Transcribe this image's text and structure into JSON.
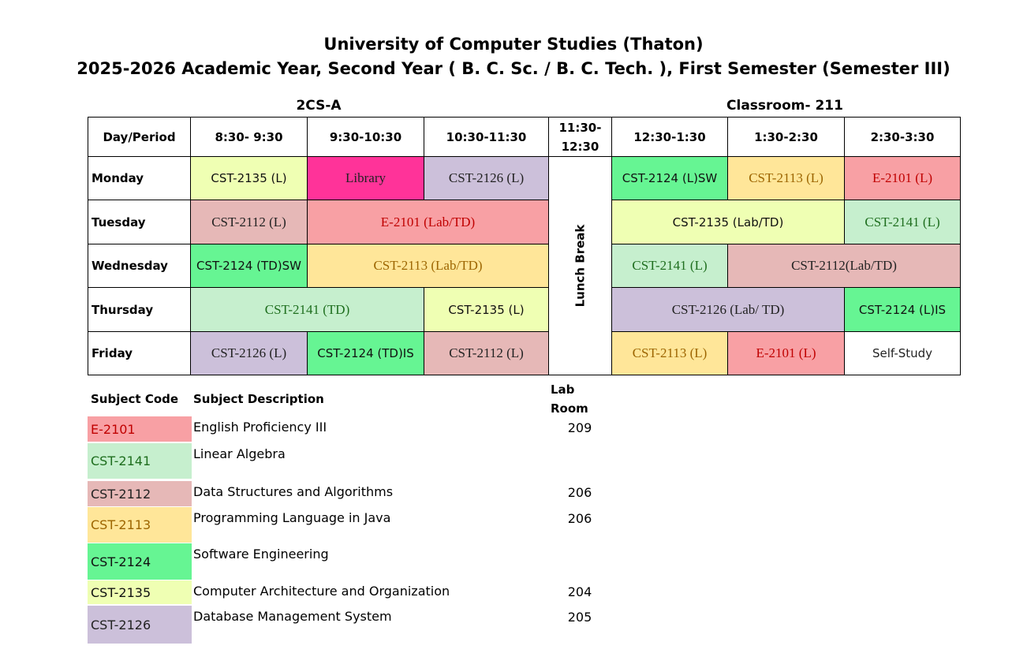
{
  "header": {
    "title": "University of Computer Studies (Thaton)",
    "subtitle": "2025-2026 Academic Year, Second Year ( B. C. Sc. / B. C. Tech. ), First Semester (Semester III)",
    "class": "2CS-A",
    "room": "Classroom- 211"
  },
  "table": {
    "headers": [
      "Day/Period",
      "8:30- 9:30",
      "9:30-10:30",
      "10:30-11:30",
      "11:30-\n12:30",
      "12:30-1:30",
      "1:30-2:30",
      "2:30-3:30"
    ],
    "break": "Lunch Break",
    "rows": [
      {
        "day": "Monday",
        "cells": [
          {
            "text": "CST-2135 (L)",
            "span": 1
          },
          {
            "text": "Library",
            "span": 1,
            "color": "#ff3399"
          },
          {
            "text": "CST-2126 (L)",
            "span": 1
          },
          {
            "text": "CST-2124 (L)SW",
            "span": 1
          },
          {
            "text": "CST-2113 (L)",
            "span": 1
          },
          {
            "text": "E-2101 (L)",
            "span": 1
          }
        ]
      },
      {
        "day": "Tuesday",
        "cells": [
          {
            "text": "CST-2112 (L)",
            "span": 1
          },
          {
            "text": "E-2101 (Lab/TD)",
            "span": 2
          },
          {
            "text": "CST-2135 (Lab/TD)",
            "span": 2
          },
          {
            "text": "CST-2141 (L)",
            "span": 1
          }
        ]
      },
      {
        "day": "Wednesday",
        "cells": [
          {
            "text": "CST-2124 (TD)SW",
            "span": 1
          },
          {
            "text": "CST-2113 (Lab/TD)",
            "span": 2
          },
          {
            "text": "CST-2141 (L)",
            "span": 1
          },
          {
            "text": "CST-2112(Lab/TD)",
            "span": 2
          }
        ]
      },
      {
        "day": "Thursday",
        "cells": [
          {
            "text": "CST-2141 (TD)",
            "span": 2
          },
          {
            "text": "CST-2135 (L)",
            "span": 1
          },
          {
            "text": "CST-2126 (Lab/ TD)",
            "span": 2
          },
          {
            "text": "CST-2124 (L)IS",
            "span": 1
          }
        ]
      },
      {
        "day": "Friday",
        "cells": [
          {
            "text": "CST-2126 (L)",
            "span": 1
          },
          {
            "text": "CST-2124 (TD)IS",
            "span": 1
          },
          {
            "text": "CST-2112 (L)",
            "span": 1
          },
          {
            "text": "CST-2113 (L)",
            "span": 1
          },
          {
            "text": "E-2101 (L)",
            "span": 1
          },
          {
            "text": "Self-Study",
            "span": 1,
            "color": "#ffffff"
          }
        ]
      }
    ]
  },
  "legend": {
    "headers": [
      "Subject Code",
      "Subject Description",
      "Lab\nRoom"
    ],
    "subjects": [
      {
        "code": "E-2101",
        "description": "English Proficiency III",
        "room": "209",
        "color": "#f8a0a4",
        "text_color": "#c00000",
        "serif": true
      },
      {
        "code": "CST-2141",
        "description": "Linear Algebra",
        "color": "#c6efce",
        "text_color": "#1e6e1e",
        "serif": true
      },
      {
        "code": "CST-2112",
        "description": "Data Structures and Algorithms",
        "room": "206",
        "color": "#e6b8b7",
        "text_color": "#222222",
        "serif": true
      },
      {
        "code": "CST-2113",
        "description": "Programming Language in Java",
        "room": "206",
        "color": "#ffe699",
        "text_color": "#9c6500",
        "serif": true
      },
      {
        "code": "CST-2124",
        "description": "Software Engineering",
        "color": "#66f593",
        "text_color": "#111111",
        "serif": false
      },
      {
        "code": "CST-2135",
        "description": "Computer Architecture and Organization",
        "room": "204",
        "color": "#efffb3",
        "text_color": "#111111",
        "serif": false
      },
      {
        "code": "CST-2126",
        "description": "Database Management System",
        "room": "205",
        "color": "#ccc0da",
        "text_color": "#222222",
        "serif": true
      }
    ]
  }
}
